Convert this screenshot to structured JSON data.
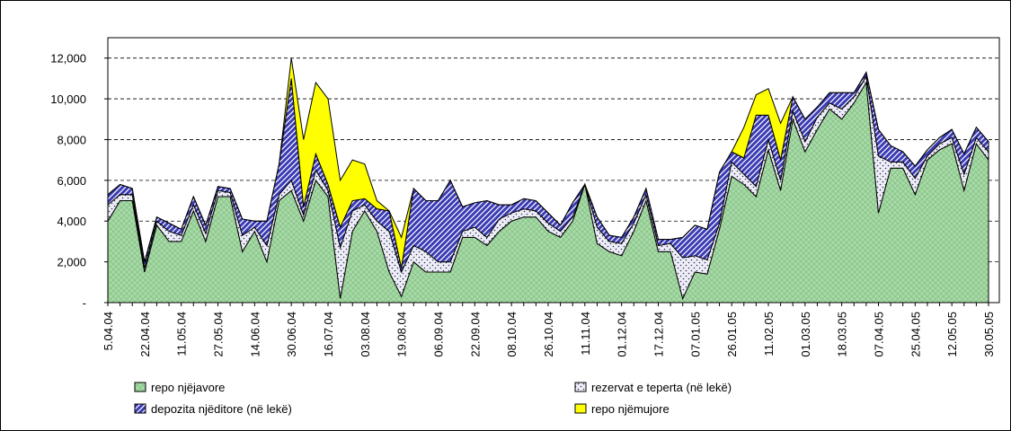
{
  "chart_data": {
    "type": "stacked_area",
    "categories": [
      "5.04.04",
      null,
      null,
      "22.04.04",
      null,
      null,
      "11.05.04",
      null,
      null,
      "27.05.04",
      null,
      null,
      "14.06.04",
      null,
      null,
      "30.06.04",
      null,
      null,
      "16.07.04",
      null,
      null,
      "03.08.04",
      null,
      null,
      "19.08.04",
      null,
      null,
      "06.09.04",
      null,
      null,
      "22.09.04",
      null,
      null,
      "08.10.04",
      null,
      null,
      "26.10.04",
      null,
      null,
      "11.11.04",
      null,
      null,
      "01.12.04",
      null,
      null,
      "17.12.04",
      null,
      null,
      "07.01.05",
      null,
      null,
      "26.01.05",
      null,
      null,
      "11.02.05",
      null,
      null,
      "01.03.05",
      null,
      null,
      "18.03.05",
      null,
      null,
      "07.04.05",
      null,
      null,
      "25.04.05",
      null,
      null,
      "12.05.05",
      null,
      null,
      "30.05.05"
    ],
    "series": [
      {
        "name": "repo njëjavore",
        "color": "#a9d9a9",
        "values": [
          4000,
          5000,
          5000,
          1500,
          3800,
          3000,
          3000,
          4500,
          3000,
          5200,
          5200,
          2500,
          3500,
          2000,
          5000,
          5500,
          4000,
          6000,
          5200,
          200,
          3500,
          4500,
          3500,
          1500,
          300,
          2000,
          1500,
          1500,
          1500,
          3200,
          3200,
          2800,
          3500,
          4000,
          4200,
          4200,
          3500,
          3200,
          4000,
          5800,
          2900,
          2500,
          2300,
          3500,
          5000,
          2500,
          2500,
          200,
          1500,
          1400,
          3600,
          6200,
          5800,
          5200,
          7500,
          5500,
          9000,
          7400,
          8500,
          9500,
          9000,
          9800,
          10800,
          4400,
          6600,
          6600,
          5300,
          7000,
          7500,
          7800,
          5500,
          7800,
          7000
        ]
      },
      {
        "name": "rezervat e teperta (në lekë)",
        "color": "#eeeefa",
        "values": [
          800,
          300,
          300,
          200,
          200,
          500,
          300,
          300,
          400,
          300,
          200,
          800,
          200,
          800,
          300,
          500,
          300,
          500,
          300,
          2500,
          1000,
          300,
          500,
          2000,
          1200,
          800,
          1000,
          500,
          500,
          300,
          500,
          400,
          600,
          400,
          400,
          300,
          400,
          300,
          200,
          0,
          800,
          500,
          600,
          400,
          300,
          300,
          400,
          2000,
          800,
          700,
          300,
          700,
          500,
          500,
          500,
          500,
          400,
          500,
          600,
          300,
          500,
          300,
          300,
          2800,
          300,
          300,
          800,
          200,
          300,
          300,
          800,
          300,
          400
        ]
      },
      {
        "name": "depozita njëditore (në lekë)",
        "color": "#3a3ab4",
        "values": [
          500,
          500,
          300,
          300,
          200,
          400,
          300,
          400,
          400,
          200,
          200,
          800,
          300,
          1200,
          1500,
          5000,
          400,
          800,
          300,
          1000,
          500,
          300,
          600,
          1000,
          200,
          2800,
          2500,
          3000,
          4000,
          1200,
          1200,
          1800,
          700,
          400,
          500,
          500,
          500,
          300,
          700,
          0,
          500,
          300,
          300,
          300,
          300,
          300,
          200,
          1000,
          1500,
          1500,
          2500,
          500,
          800,
          3500,
          1200,
          1000,
          700,
          1100,
          500,
          500,
          800,
          200,
          200,
          1300,
          800,
          500,
          600,
          300,
          300,
          400,
          1000,
          500,
          500
        ]
      },
      {
        "name": "repo njëmujore",
        "color": "#ffff00",
        "values": [
          0,
          0,
          0,
          0,
          0,
          0,
          0,
          0,
          0,
          0,
          0,
          0,
          0,
          0,
          0,
          1000,
          3300,
          3500,
          4200,
          2300,
          2000,
          1700,
          400,
          0,
          1500,
          0,
          0,
          0,
          0,
          0,
          0,
          0,
          0,
          0,
          0,
          0,
          0,
          0,
          0,
          0,
          0,
          0,
          0,
          0,
          0,
          0,
          0,
          0,
          0,
          0,
          0,
          0,
          1500,
          1000,
          1300,
          1800,
          0,
          0,
          0,
          0,
          0,
          0,
          0,
          0,
          0,
          0,
          0,
          0,
          0,
          0,
          0,
          0,
          0
        ]
      }
    ],
    "ylim": [
      0,
      13000
    ],
    "yticks": [
      {
        "value": 0,
        "label": "-"
      },
      {
        "value": 2000,
        "label": "2,000"
      },
      {
        "value": 4000,
        "label": "4,000"
      },
      {
        "value": 6000,
        "label": "6,000"
      },
      {
        "value": 8000,
        "label": "8,000"
      },
      {
        "value": 10000,
        "label": "10,000"
      },
      {
        "value": 12000,
        "label": "12,000"
      }
    ],
    "grid": true
  }
}
